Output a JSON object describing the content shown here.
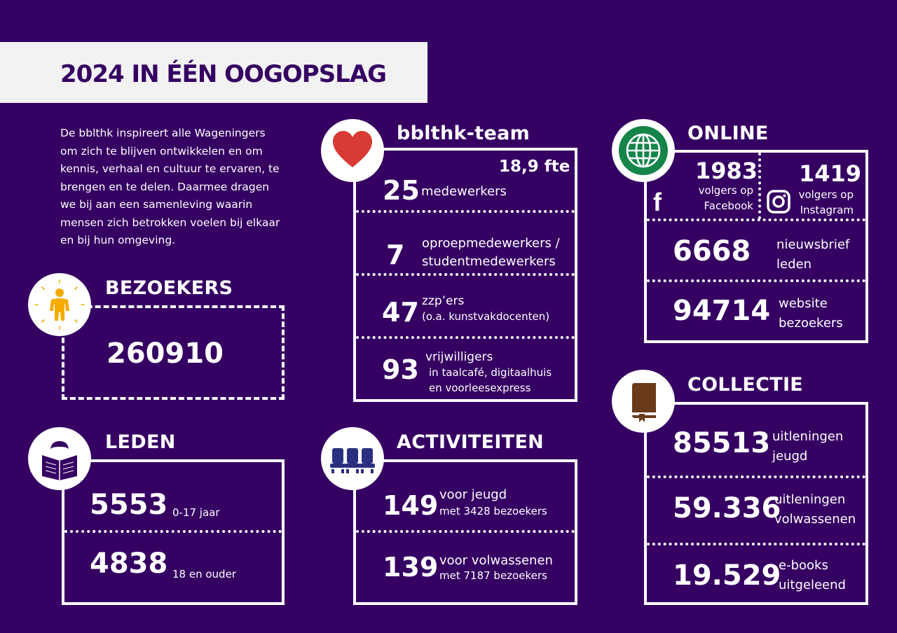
{
  "title": "2024 IN ÉÉN OOGOPSLAG",
  "intro": [
    "De bblthk inspireert alle Wageningers",
    "om zich te blijven ontwikkelen en om",
    "kennis, verhaal en cultuur te ervaren, te",
    "brengen en te delen.  Daarmee dragen",
    "we bij aan een samenleving waarin",
    "mensen zich betrokken voelen bij elkaar",
    "en bij hun omgeving."
  ],
  "bezoekers": {
    "heading": "BEZOEKERS",
    "icon": "person-icon",
    "value": "260910"
  },
  "leden": {
    "heading": "LEDEN",
    "icon": "reader-icon",
    "rows": [
      {
        "value": "5553",
        "label": "0-17 jaar"
      },
      {
        "value": "4838",
        "label": "18 en ouder"
      }
    ]
  },
  "team": {
    "heading": "bblthk-team",
    "icon": "heart-icon",
    "fte": "18,9 fte",
    "rows": [
      {
        "value": "25",
        "label1": "medewerkers",
        "label2": ""
      },
      {
        "value": "7",
        "label1": "oproepmedewerkers /",
        "label2": "studentmedewerkers"
      },
      {
        "value": "47",
        "label1": "zzp’ers",
        "label2": "(o.a. kunstvakdocenten)"
      },
      {
        "value": "93",
        "label1": "vrijwilligers",
        "label2": "in taalcafé, digitaalhuis",
        "label3": "en voorleesexpress"
      }
    ]
  },
  "activiteiten": {
    "heading": "ACTIVITEITEN",
    "icon": "seats-icon",
    "rows": [
      {
        "value": "149",
        "label1": "voor jeugd",
        "label2": "met 3428 bezoekers"
      },
      {
        "value": "139",
        "label1": "voor volwassenen",
        "label2": "met 7187 bezoekers"
      }
    ]
  },
  "online": {
    "heading": "ONLINE",
    "icon": "globe-icon",
    "facebook": {
      "value": "1983",
      "label1": "volgers op",
      "label2": "Facebook",
      "icon": "facebook-icon",
      "glyph": "f"
    },
    "instagram": {
      "value": "1419",
      "label1": "volgers op",
      "label2": "Instagram",
      "icon": "instagram-icon"
    },
    "rows": [
      {
        "value": "6668",
        "label1": "nieuwsbrief",
        "label2": "leden"
      },
      {
        "value": "94714",
        "label1": "website",
        "label2": "bezoekers"
      }
    ]
  },
  "collectie": {
    "heading": "COLLECTIE",
    "icon": "book-icon",
    "rows": [
      {
        "value": "85513",
        "label1": "uitleningen",
        "label2": "jeugd"
      },
      {
        "value": "59.336",
        "label1": "uitleningen",
        "label2": "volwassenen"
      },
      {
        "value": "19.529",
        "label1": "e-books",
        "label2": "uitgeleend"
      }
    ]
  },
  "colors": {
    "background": "#350062",
    "banner": "#f2f2f2",
    "heart": "#d83a34",
    "globe": "#15854a",
    "person": "#f5ab00",
    "seats": "#2b2f80",
    "book": "#6b3a1a"
  }
}
